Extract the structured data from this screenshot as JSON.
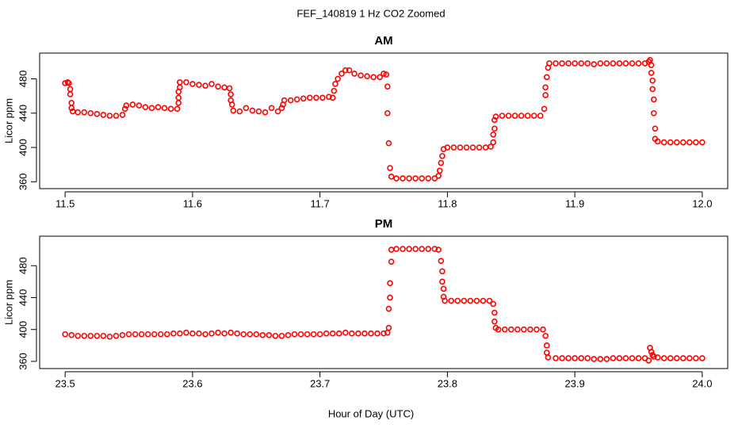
{
  "title": "FEF_140819  1 Hz CO2 Zoomed",
  "xlabel": "Hour of Day (UTC)",
  "chart_data": [
    {
      "type": "scatter",
      "title": "AM",
      "ylabel": "Licor ppm",
      "color": "#ff0000",
      "xlim": [
        11.48,
        12.02
      ],
      "ylim": [
        352,
        510
      ],
      "xticks": [
        11.5,
        11.6,
        11.7,
        11.8,
        11.9,
        {
          "value": 12,
          "label": "12.0"
        }
      ],
      "yticks": [
        360,
        400,
        440,
        480
      ],
      "x": [
        11.5,
        11.502,
        11.503,
        11.504,
        11.504,
        11.505,
        11.505,
        11.506,
        11.51,
        11.515,
        11.52,
        11.525,
        11.53,
        11.535,
        11.54,
        11.545,
        11.547,
        11.548,
        11.553,
        11.558,
        11.563,
        11.568,
        11.573,
        11.578,
        11.583,
        11.588,
        11.589,
        11.589,
        11.589,
        11.59,
        11.59,
        11.595,
        11.6,
        11.605,
        11.61,
        11.615,
        11.62,
        11.625,
        11.629,
        11.63,
        11.63,
        11.631,
        11.632,
        11.637,
        11.642,
        11.647,
        11.652,
        11.657,
        11.662,
        11.667,
        11.67,
        11.671,
        11.672,
        11.677,
        11.682,
        11.687,
        11.692,
        11.697,
        11.702,
        11.707,
        11.71,
        11.711,
        11.712,
        11.714,
        11.717,
        11.72,
        11.723,
        11.727,
        11.732,
        11.737,
        11.742,
        11.747,
        11.75,
        11.752,
        11.753,
        11.753,
        11.754,
        11.755,
        11.756,
        11.76,
        11.765,
        11.77,
        11.775,
        11.78,
        11.785,
        11.79,
        11.793,
        11.794,
        11.795,
        11.796,
        11.797,
        11.8,
        11.805,
        11.81,
        11.815,
        11.82,
        11.825,
        11.83,
        11.834,
        11.836,
        11.836,
        11.837,
        11.837,
        11.838,
        11.843,
        11.848,
        11.853,
        11.858,
        11.863,
        11.868,
        11.873,
        11.876,
        11.877,
        11.877,
        11.878,
        11.879,
        11.88,
        11.885,
        11.89,
        11.895,
        11.9,
        11.905,
        11.91,
        11.915,
        11.92,
        11.925,
        11.93,
        11.935,
        11.94,
        11.945,
        11.95,
        11.955,
        11.958,
        11.959,
        11.96,
        11.96,
        11.961,
        11.961,
        11.962,
        11.962,
        11.963,
        11.963,
        11.965,
        11.97,
        11.975,
        11.98,
        11.985,
        11.99,
        11.995,
        12.0
      ],
      "values": [
        475,
        476,
        475,
        468,
        462,
        452,
        446,
        442,
        441,
        441,
        440,
        439,
        438,
        437,
        437,
        438,
        445,
        449,
        450,
        449,
        447,
        446,
        447,
        446,
        445,
        445,
        452,
        458,
        465,
        470,
        476,
        476,
        474,
        473,
        472,
        474,
        471,
        470,
        469,
        462,
        455,
        450,
        443,
        442,
        446,
        443,
        442,
        441,
        446,
        442,
        446,
        450,
        455,
        455,
        456,
        457,
        458,
        458,
        458,
        459,
        458,
        466,
        474,
        480,
        486,
        490,
        490,
        486,
        484,
        483,
        482,
        482,
        486,
        485,
        471,
        440,
        405,
        376,
        366,
        364,
        364,
        364,
        364,
        364,
        364,
        364,
        367,
        373,
        382,
        390,
        398,
        400,
        400,
        400,
        400,
        400,
        400,
        400,
        401,
        406,
        415,
        422,
        432,
        436,
        437,
        437,
        437,
        437,
        437,
        437,
        437,
        445,
        461,
        470,
        482,
        493,
        498,
        498,
        498,
        498,
        498,
        498,
        498,
        497,
        498,
        498,
        498,
        498,
        498,
        498,
        498,
        498,
        500,
        502,
        496,
        487,
        478,
        468,
        456,
        440,
        422,
        410,
        407,
        406,
        406,
        406,
        406,
        406,
        406,
        406
      ]
    },
    {
      "type": "scatter",
      "title": "PM",
      "ylabel": "Licor ppm",
      "color": "#ff0000",
      "xlim": [
        23.48,
        24.02
      ],
      "ylim": [
        351,
        517
      ],
      "xticks": [
        23.5,
        23.6,
        23.7,
        23.8,
        23.9,
        {
          "value": 24,
          "label": "24.0"
        }
      ],
      "yticks": [
        360,
        400,
        440,
        480
      ],
      "x": [
        23.5,
        23.505,
        23.51,
        23.515,
        23.52,
        23.525,
        23.53,
        23.535,
        23.54,
        23.545,
        23.55,
        23.555,
        23.56,
        23.565,
        23.57,
        23.575,
        23.58,
        23.585,
        23.59,
        23.595,
        23.6,
        23.605,
        23.61,
        23.615,
        23.62,
        23.625,
        23.63,
        23.635,
        23.64,
        23.645,
        23.65,
        23.655,
        23.66,
        23.665,
        23.67,
        23.675,
        23.68,
        23.685,
        23.69,
        23.695,
        23.7,
        23.705,
        23.71,
        23.715,
        23.72,
        23.725,
        23.73,
        23.735,
        23.74,
        23.745,
        23.75,
        23.753,
        23.754,
        23.754,
        23.755,
        23.755,
        23.756,
        23.756,
        23.76,
        23.765,
        23.77,
        23.775,
        23.78,
        23.785,
        23.79,
        23.793,
        23.795,
        23.796,
        23.796,
        23.797,
        23.797,
        23.798,
        23.803,
        23.808,
        23.813,
        23.818,
        23.823,
        23.828,
        23.833,
        23.836,
        23.837,
        23.837,
        23.838,
        23.84,
        23.845,
        23.85,
        23.855,
        23.86,
        23.865,
        23.87,
        23.875,
        23.877,
        23.878,
        23.878,
        23.879,
        23.885,
        23.89,
        23.895,
        23.9,
        23.905,
        23.91,
        23.915,
        23.92,
        23.925,
        23.93,
        23.935,
        23.94,
        23.945,
        23.95,
        23.955,
        23.958,
        23.959,
        23.96,
        23.961,
        23.962,
        23.965,
        23.97,
        23.975,
        23.98,
        23.985,
        23.99,
        23.995,
        24.0
      ],
      "values": [
        394,
        393,
        392,
        392,
        392,
        392,
        392,
        391,
        392,
        393,
        394,
        394,
        394,
        394,
        394,
        394,
        394,
        395,
        395,
        396,
        395,
        395,
        394,
        395,
        396,
        395,
        396,
        395,
        394,
        394,
        394,
        393,
        393,
        392,
        392,
        393,
        394,
        394,
        394,
        394,
        394,
        395,
        395,
        395,
        396,
        395,
        395,
        395,
        395,
        395,
        395,
        396,
        402,
        426,
        440,
        458,
        485,
        500,
        501,
        501,
        501,
        501,
        501,
        501,
        501,
        500,
        486,
        473,
        460,
        451,
        441,
        436,
        436,
        436,
        436,
        436,
        436,
        436,
        436,
        432,
        421,
        410,
        402,
        400,
        400,
        400,
        400,
        400,
        400,
        400,
        400,
        392,
        380,
        371,
        365,
        364,
        364,
        364,
        364,
        364,
        364,
        363,
        363,
        363,
        364,
        364,
        364,
        364,
        364,
        364,
        361,
        377,
        372,
        368,
        366,
        365,
        364,
        364,
        364,
        364,
        364,
        364,
        364
      ]
    }
  ]
}
